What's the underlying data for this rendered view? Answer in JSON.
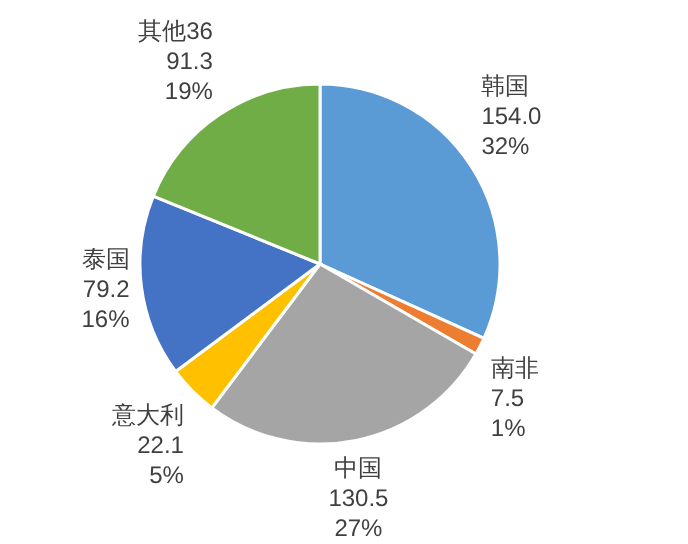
{
  "chart_data": {
    "type": "pie",
    "categories": [
      "韩国",
      "南非",
      "中国",
      "意大利",
      "泰国",
      "其他36"
    ],
    "values": [
      154.0,
      7.5,
      130.5,
      22.1,
      79.2,
      91.3
    ],
    "value_labels": [
      "154.0\n32%",
      "7.5\n1%",
      "130.5\n27%",
      "22.1\n5%",
      "79.2\n16%",
      "91.3\n19%"
    ],
    "colors": [
      "#5b9bd5",
      "#ed7d31",
      "#a5a5a5",
      "#ffc000",
      "#4472c4",
      "#70ad47"
    ]
  }
}
